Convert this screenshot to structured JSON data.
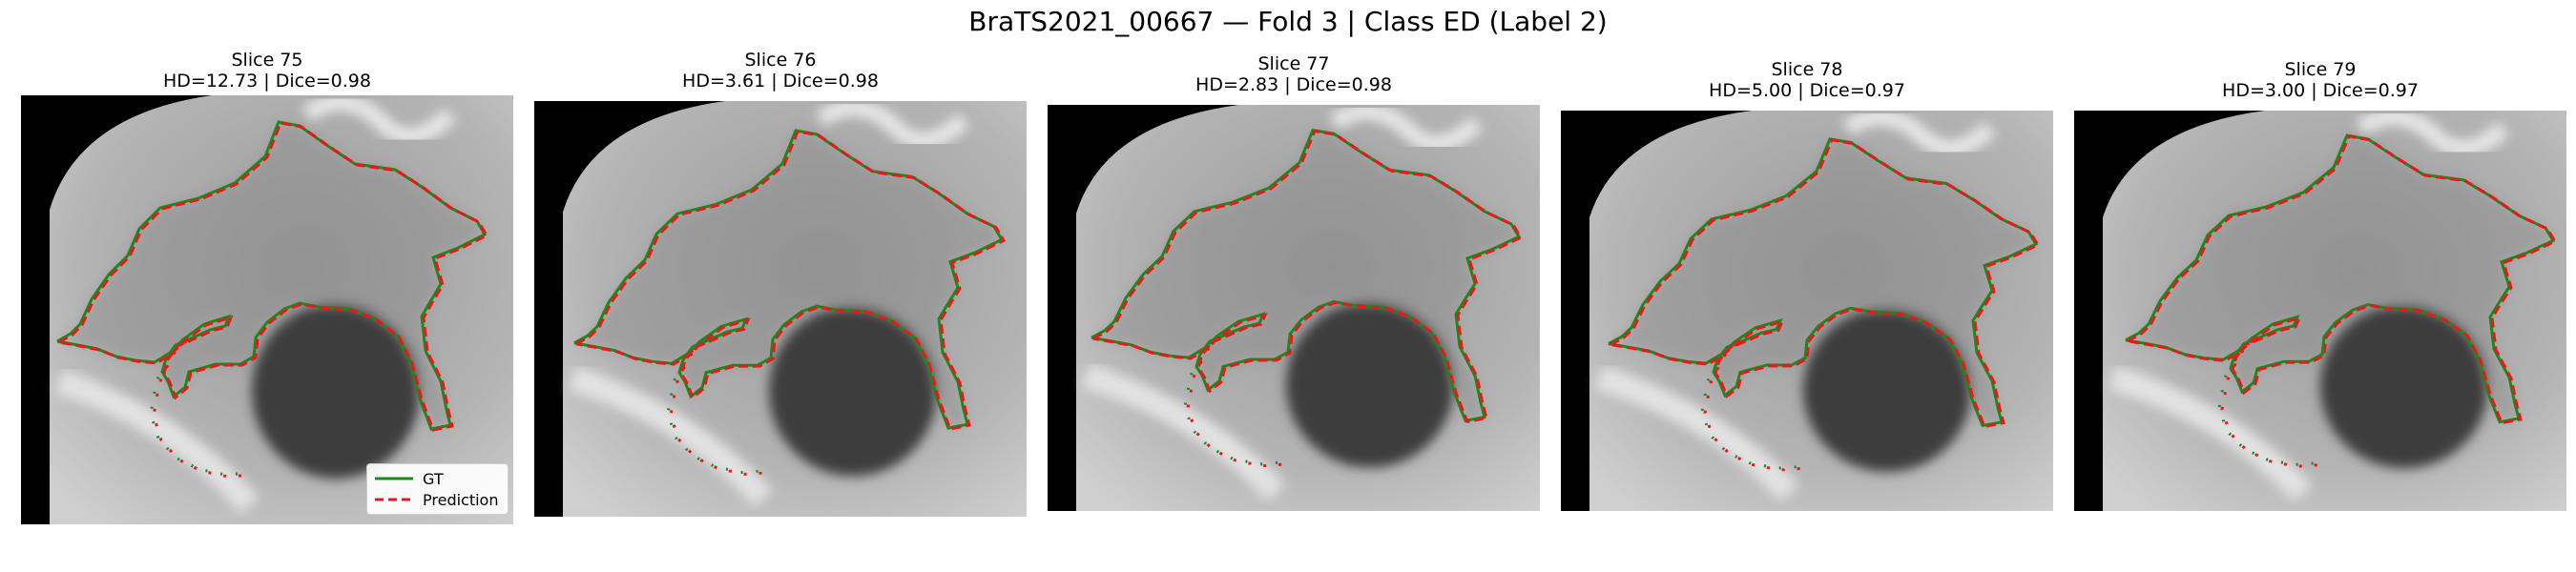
{
  "title": "BraTS2021_00667 — Fold 3 | Class ED (Label 2)",
  "colors": {
    "gt": "#1a8a1a",
    "prediction": "#e41a1c"
  },
  "legend": {
    "gt_label": "GT",
    "prediction_label": "Prediction"
  },
  "panels": [
    {
      "slice": "Slice 75",
      "metrics": "HD=12.73 | Dice=0.98"
    },
    {
      "slice": "Slice 76",
      "metrics": "HD=3.61 | Dice=0.98"
    },
    {
      "slice": "Slice 77",
      "metrics": "HD=2.83 | Dice=0.98"
    },
    {
      "slice": "Slice 78",
      "metrics": "HD=5.00 | Dice=0.97"
    },
    {
      "slice": "Slice 79",
      "metrics": "HD=3.00 | Dice=0.97"
    }
  ],
  "chart_data": [
    {
      "type": "image-overlay",
      "title": "Slice 75",
      "subtitle": "HD=12.73 | Dice=0.98",
      "series": [
        {
          "name": "GT"
        },
        {
          "name": "Prediction"
        }
      ],
      "hd": 12.73,
      "dice": 0.98
    },
    {
      "type": "image-overlay",
      "title": "Slice 76",
      "subtitle": "HD=3.61 | Dice=0.98",
      "series": [
        {
          "name": "GT"
        },
        {
          "name": "Prediction"
        }
      ],
      "hd": 3.61,
      "dice": 0.98
    },
    {
      "type": "image-overlay",
      "title": "Slice 77",
      "subtitle": "HD=2.83 | Dice=0.98",
      "series": [
        {
          "name": "GT"
        },
        {
          "name": "Prediction"
        }
      ],
      "hd": 2.83,
      "dice": 0.98
    },
    {
      "type": "image-overlay",
      "title": "Slice 78",
      "subtitle": "HD=5.00 | Dice=0.97",
      "series": [
        {
          "name": "GT"
        },
        {
          "name": "Prediction"
        }
      ],
      "hd": 5.0,
      "dice": 0.97
    },
    {
      "type": "image-overlay",
      "title": "Slice 79",
      "subtitle": "HD=3.00 | Dice=0.97",
      "series": [
        {
          "name": "GT"
        },
        {
          "name": "Prediction"
        }
      ],
      "hd": 3.0,
      "dice": 0.97
    }
  ]
}
